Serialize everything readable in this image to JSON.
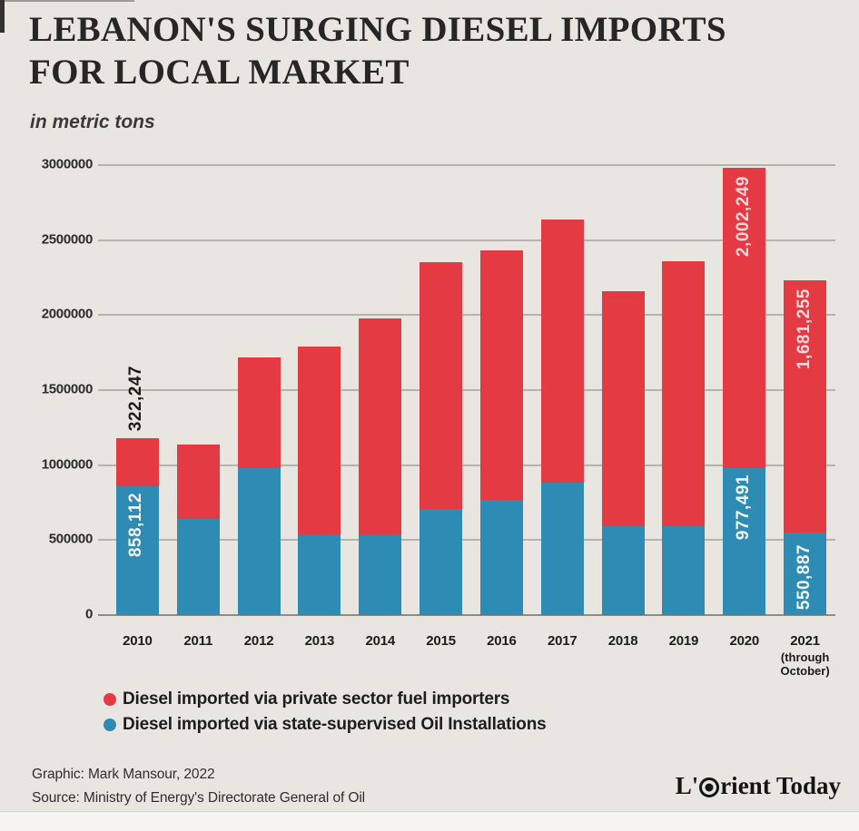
{
  "page": {
    "background": "#e9e6e1"
  },
  "title": {
    "line1": "LEBANON'S SURGING DIESEL IMPORTS",
    "line2": "FOR LOCAL MARKET"
  },
  "subtitle": "in metric tons",
  "chart_data": {
    "type": "bar",
    "stacked": true,
    "unit": "metric tons",
    "categories": [
      "2010",
      "2011",
      "2012",
      "2013",
      "2014",
      "2015",
      "2016",
      "2017",
      "2018",
      "2019",
      "2020",
      "2021"
    ],
    "last_category_note": "(through October)",
    "ylim": [
      0,
      3000000
    ],
    "yticks": [
      "3000000",
      "2500000",
      "2000000",
      "1500000",
      "1000000",
      "500000",
      "0"
    ],
    "grid": true,
    "legend_position": "bottom-left",
    "series": [
      {
        "name": "Diesel imported via state-supervised Oil Installations",
        "key": "state",
        "color": "#2e8bb3",
        "values": [
          858112,
          640000,
          980000,
          530000,
          535000,
          705000,
          770000,
          885000,
          590000,
          595000,
          977491,
          550887
        ]
      },
      {
        "name": "Diesel imported via private sector fuel importers",
        "key": "private",
        "color": "#e43a44",
        "values": [
          322247,
          500000,
          740000,
          1260000,
          1445000,
          1645000,
          1660000,
          1755000,
          1570000,
          1765000,
          2002249,
          1681255
        ]
      }
    ],
    "annotations": [
      {
        "index": 0,
        "segment": "private",
        "text": "322,247",
        "placement": "above",
        "color": "#1c1c1c"
      },
      {
        "index": 0,
        "segment": "state",
        "text": "858,112",
        "placement": "inside-state-top",
        "color": "rgba(255,255,255,0.92)"
      },
      {
        "index": 10,
        "segment": "private",
        "text": "2,002,249",
        "placement": "inside-private-top",
        "color": "rgba(255,255,255,0.8)"
      },
      {
        "index": 10,
        "segment": "state",
        "text": "977,491",
        "placement": "inside-state-top",
        "color": "rgba(255,255,255,0.92)"
      },
      {
        "index": 11,
        "segment": "private",
        "text": "1,681,255",
        "placement": "inside-private-top",
        "color": "rgba(255,255,255,0.8)"
      },
      {
        "index": 11,
        "segment": "state",
        "text": "550,887",
        "placement": "bottom",
        "color": "rgba(255,255,255,0.92)"
      }
    ]
  },
  "legend": [
    {
      "label": "Diesel imported via private sector fuel importers",
      "color": "#e43a44"
    },
    {
      "label": "Diesel imported via state-supervised Oil Installations",
      "color": "#2e8bb3"
    }
  ],
  "footer": {
    "credit": "Graphic: Mark Mansour, 2022",
    "source": "Source: Ministry of Energy's Directorate General of Oil",
    "logo_prefix": "L'",
    "logo_suffix": "rient Today"
  }
}
